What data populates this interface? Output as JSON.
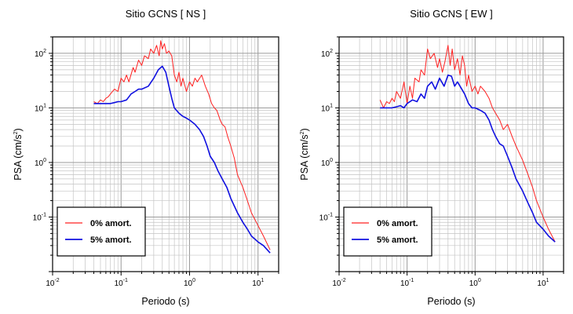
{
  "chart_data": [
    {
      "type": "line",
      "title": "Sitio GCNS [ NS ]",
      "xlabel": "Periodo (s)",
      "ylabel_main": "PSA (cm/s",
      "ylabel_sup": "2",
      "ylabel_tail": ")",
      "xscale": "log",
      "yscale": "log",
      "xlim": [
        0.01,
        20
      ],
      "ylim": [
        0.01,
        200
      ],
      "grid": true,
      "legend_position": "bottom-left",
      "x_ticks": [
        {
          "base": "10",
          "exp": "-2"
        },
        {
          "base": "10",
          "exp": "-1"
        },
        {
          "base": "10",
          "exp": "0"
        },
        {
          "base": "10",
          "exp": "1"
        }
      ],
      "y_ticks": [
        {
          "base": "10",
          "exp": "-1"
        },
        {
          "base": "10",
          "exp": "0"
        },
        {
          "base": "10",
          "exp": "1"
        },
        {
          "base": "10",
          "exp": "2"
        }
      ],
      "series": [
        {
          "name": "0% amort.",
          "color": "#ff2020",
          "x": [
            0.04,
            0.045,
            0.05,
            0.055,
            0.06,
            0.065,
            0.07,
            0.08,
            0.09,
            0.1,
            0.11,
            0.12,
            0.13,
            0.15,
            0.16,
            0.18,
            0.2,
            0.22,
            0.25,
            0.27,
            0.3,
            0.33,
            0.36,
            0.38,
            0.4,
            0.43,
            0.46,
            0.5,
            0.55,
            0.6,
            0.65,
            0.7,
            0.75,
            0.8,
            0.9,
            1.0,
            1.1,
            1.2,
            1.3,
            1.5,
            1.7,
            1.9,
            2.1,
            2.3,
            2.5,
            2.8,
            3.0,
            3.3,
            3.6,
            4.0,
            4.5,
            5.0,
            6.0,
            7.0,
            8.0,
            10,
            12,
            15
          ],
          "y": [
            13,
            12,
            14,
            13,
            15,
            16,
            18,
            22,
            20,
            35,
            30,
            40,
            30,
            55,
            45,
            75,
            60,
            90,
            80,
            120,
            100,
            140,
            90,
            170,
            120,
            150,
            100,
            110,
            90,
            40,
            30,
            45,
            25,
            35,
            20,
            30,
            25,
            35,
            30,
            40,
            25,
            18,
            12,
            10,
            9,
            6,
            5,
            4.5,
            3,
            2,
            1.2,
            0.6,
            0.35,
            0.2,
            0.12,
            0.07,
            0.045,
            0.025
          ]
        },
        {
          "name": "5% amort.",
          "color": "#1010e0",
          "x": [
            0.04,
            0.05,
            0.06,
            0.07,
            0.08,
            0.09,
            0.1,
            0.12,
            0.14,
            0.16,
            0.18,
            0.2,
            0.25,
            0.3,
            0.35,
            0.4,
            0.45,
            0.5,
            0.55,
            0.6,
            0.7,
            0.8,
            0.9,
            1.0,
            1.2,
            1.4,
            1.6,
            1.8,
            2.0,
            2.3,
            2.6,
            3.0,
            3.5,
            4.0,
            5.0,
            6.0,
            7.0,
            8.0,
            10,
            12,
            15
          ],
          "y": [
            12,
            12,
            12,
            12,
            12.5,
            13,
            13,
            14,
            18,
            20,
            22,
            22,
            25,
            35,
            50,
            58,
            45,
            25,
            15,
            10,
            8,
            7,
            6.5,
            6,
            5,
            4,
            3,
            2,
            1.3,
            1.0,
            0.7,
            0.5,
            0.35,
            0.22,
            0.12,
            0.08,
            0.06,
            0.045,
            0.035,
            0.03,
            0.022
          ]
        }
      ]
    },
    {
      "type": "line",
      "title": "Sitio GCNS [ EW ]",
      "xlabel": "Periodo (s)",
      "ylabel_main": "PSA (cm/s",
      "ylabel_sup": "2",
      "ylabel_tail": ")",
      "xscale": "log",
      "yscale": "log",
      "xlim": [
        0.01,
        20
      ],
      "ylim": [
        0.01,
        200
      ],
      "grid": true,
      "legend_position": "bottom-left",
      "x_ticks": [
        {
          "base": "10",
          "exp": "-2"
        },
        {
          "base": "10",
          "exp": "-1"
        },
        {
          "base": "10",
          "exp": "0"
        },
        {
          "base": "10",
          "exp": "1"
        }
      ],
      "y_ticks": [
        {
          "base": "10",
          "exp": "-1"
        },
        {
          "base": "10",
          "exp": "0"
        },
        {
          "base": "10",
          "exp": "1"
        },
        {
          "base": "10",
          "exp": "2"
        }
      ],
      "series": [
        {
          "name": "0% amort.",
          "color": "#ff2020",
          "x": [
            0.04,
            0.045,
            0.05,
            0.055,
            0.06,
            0.065,
            0.07,
            0.08,
            0.09,
            0.1,
            0.11,
            0.12,
            0.13,
            0.15,
            0.16,
            0.18,
            0.2,
            0.22,
            0.25,
            0.28,
            0.3,
            0.33,
            0.36,
            0.4,
            0.43,
            0.46,
            0.5,
            0.55,
            0.6,
            0.65,
            0.7,
            0.75,
            0.8,
            0.9,
            1.0,
            1.1,
            1.2,
            1.4,
            1.6,
            1.8,
            2.0,
            2.3,
            2.6,
            3.0,
            3.5,
            4.0,
            5.0,
            6.0,
            7.0,
            8.0,
            10,
            12,
            15
          ],
          "y": [
            14,
            10,
            13,
            12,
            15,
            13,
            20,
            15,
            30,
            12,
            25,
            15,
            35,
            30,
            50,
            40,
            120,
            80,
            100,
            55,
            80,
            45,
            70,
            140,
            60,
            120,
            50,
            80,
            40,
            90,
            60,
            25,
            40,
            20,
            25,
            18,
            25,
            20,
            15,
            10,
            8,
            6,
            4,
            5,
            3,
            2,
            1.1,
            0.6,
            0.35,
            0.2,
            0.1,
            0.06,
            0.035
          ]
        },
        {
          "name": "5% amort.",
          "color": "#1010e0",
          "x": [
            0.04,
            0.05,
            0.06,
            0.07,
            0.08,
            0.09,
            0.1,
            0.12,
            0.14,
            0.16,
            0.18,
            0.2,
            0.23,
            0.26,
            0.3,
            0.35,
            0.4,
            0.45,
            0.5,
            0.55,
            0.6,
            0.7,
            0.8,
            0.9,
            1.0,
            1.2,
            1.4,
            1.6,
            1.8,
            2.0,
            2.3,
            2.6,
            3.0,
            3.5,
            4.0,
            5.0,
            6.0,
            7.0,
            8.0,
            10,
            12,
            15
          ],
          "y": [
            10,
            10,
            10,
            10.5,
            11,
            10,
            12,
            14,
            13,
            18,
            15,
            25,
            30,
            22,
            35,
            25,
            40,
            38,
            25,
            30,
            25,
            18,
            12,
            10,
            10,
            9,
            8,
            6,
            4,
            3,
            2.2,
            2.0,
            1.3,
            0.8,
            0.5,
            0.3,
            0.18,
            0.12,
            0.08,
            0.06,
            0.045,
            0.035
          ]
        }
      ]
    }
  ]
}
